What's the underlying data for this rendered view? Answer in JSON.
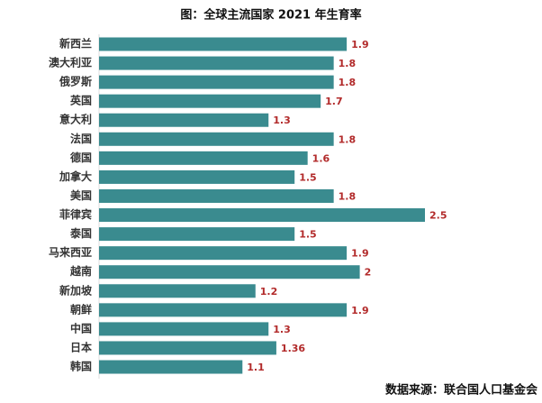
{
  "chart_data": {
    "type": "bar",
    "orientation": "horizontal",
    "title": "图：全球主流国家 2021 年生育率",
    "source": "数据来源：联合国人口基金会",
    "categories": [
      "新西兰",
      "澳大利亚",
      "俄罗斯",
      "英国",
      "意大利",
      "法国",
      "德国",
      "加拿大",
      "美国",
      "菲律宾",
      "泰国",
      "马来西亚",
      "越南",
      "新加坡",
      "朝鲜",
      "中国",
      "日本",
      "韩国"
    ],
    "values": [
      1.9,
      1.8,
      1.8,
      1.7,
      1.3,
      1.8,
      1.6,
      1.5,
      1.8,
      2.5,
      1.5,
      1.9,
      2,
      1.2,
      1.9,
      1.3,
      1.36,
      1.1
    ],
    "color": "#3a8b8f"
  }
}
